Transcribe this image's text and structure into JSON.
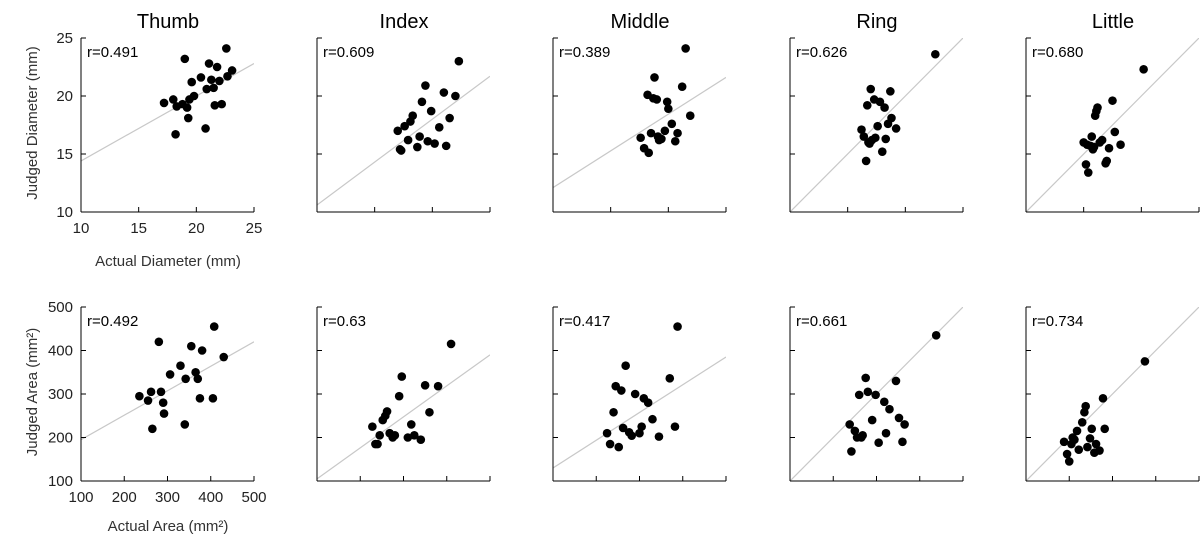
{
  "columns": [
    "Thumb",
    "Index",
    "Middle",
    "Ring",
    "Little"
  ],
  "rows": [
    {
      "xlabel": "Actual Diameter (mm)",
      "ylabel": "Judged Diameter (mm)",
      "xlim": [
        10,
        25
      ],
      "ylim": [
        10,
        25
      ],
      "xticks": [
        10,
        15,
        20,
        25
      ],
      "yticks": [
        10,
        15,
        20,
        25
      ]
    },
    {
      "xlabel": "Actual Area (mm²)",
      "ylabel": "Judged Area (mm²)",
      "xlim": [
        100,
        500
      ],
      "ylim": [
        100,
        500
      ],
      "xticks": [
        100,
        200,
        300,
        400,
        500
      ],
      "yticks": [
        100,
        200,
        300,
        400,
        500
      ]
    }
  ],
  "chart_data": [
    {
      "type": "scatter",
      "row": 0,
      "col": 0,
      "title": "Thumb",
      "r_label": "r=0.491",
      "xlabel": "Actual Diameter (mm)",
      "ylabel": "Judged Diameter (mm)",
      "xlim": [
        10,
        25
      ],
      "ylim": [
        10,
        25
      ],
      "fit_line": {
        "x": [
          10,
          25
        ],
        "y": [
          14.4,
          22.8
        ]
      },
      "x": [
        17.2,
        18.0,
        18.3,
        18.8,
        19.0,
        19.2,
        19.3,
        19.4,
        19.6,
        19.8,
        20.4,
        20.8,
        20.9,
        21.1,
        21.3,
        21.5,
        21.6,
        21.8,
        22.0,
        22.2,
        22.6,
        22.7,
        23.1,
        18.2
      ],
      "y": [
        19.4,
        19.7,
        19.1,
        19.3,
        23.2,
        19.0,
        18.1,
        19.7,
        21.2,
        20.0,
        21.6,
        17.2,
        20.6,
        22.8,
        21.4,
        20.7,
        19.2,
        22.5,
        21.3,
        19.3,
        24.1,
        21.7,
        22.2,
        16.7
      ]
    },
    {
      "type": "scatter",
      "row": 0,
      "col": 1,
      "title": "Index",
      "r_label": "r=0.609",
      "xlabel": "",
      "ylabel": "",
      "xlim": [
        10,
        25
      ],
      "ylim": [
        10,
        25
      ],
      "fit_line": {
        "x": [
          10,
          25
        ],
        "y": [
          10.6,
          21.7
        ]
      },
      "x": [
        17.0,
        17.2,
        17.3,
        17.6,
        17.9,
        18.1,
        18.3,
        18.7,
        18.9,
        19.1,
        19.4,
        19.6,
        19.9,
        20.2,
        20.6,
        21.0,
        21.2,
        21.5,
        22.0,
        22.3
      ],
      "y": [
        17.0,
        15.4,
        15.3,
        17.4,
        16.2,
        17.8,
        18.3,
        15.6,
        16.5,
        19.5,
        20.9,
        16.1,
        18.7,
        15.9,
        17.3,
        20.3,
        15.7,
        18.1,
        20.0,
        23.0
      ]
    },
    {
      "type": "scatter",
      "row": 0,
      "col": 2,
      "title": "Middle",
      "r_label": "r=0.389",
      "xlabel": "",
      "ylabel": "",
      "xlim": [
        10,
        25
      ],
      "ylim": [
        10,
        25
      ],
      "fit_line": {
        "x": [
          10,
          25
        ],
        "y": [
          12.1,
          21.6
        ]
      },
      "x": [
        17.6,
        17.9,
        18.2,
        18.3,
        18.5,
        18.7,
        18.8,
        19.0,
        19.1,
        19.2,
        19.4,
        19.7,
        19.9,
        20.0,
        20.3,
        20.6,
        20.8,
        21.2,
        21.5,
        21.9
      ],
      "y": [
        16.4,
        15.5,
        20.1,
        15.1,
        16.8,
        19.8,
        21.6,
        19.7,
        16.5,
        16.2,
        16.3,
        17.0,
        19.5,
        18.9,
        17.6,
        16.1,
        16.8,
        20.8,
        24.1,
        18.3
      ]
    },
    {
      "type": "scatter",
      "row": 0,
      "col": 3,
      "title": "Ring",
      "r_label": "r=0.626",
      "xlabel": "",
      "ylabel": "",
      "xlim": [
        10,
        25
      ],
      "ylim": [
        10,
        25
      ],
      "fit_line": {
        "x": [
          10,
          25
        ],
        "y": [
          10.0,
          25.0
        ]
      },
      "x": [
        16.2,
        16.4,
        16.6,
        16.7,
        16.8,
        16.9,
        17.0,
        17.1,
        17.3,
        17.4,
        17.6,
        17.8,
        18.0,
        18.2,
        18.3,
        18.5,
        18.7,
        18.8,
        19.2,
        22.6
      ],
      "y": [
        17.1,
        16.5,
        14.4,
        19.2,
        16.0,
        15.9,
        20.6,
        16.2,
        19.7,
        16.4,
        17.4,
        19.5,
        15.2,
        19.0,
        16.3,
        17.6,
        20.4,
        18.1,
        17.2,
        23.6
      ]
    },
    {
      "type": "scatter",
      "row": 0,
      "col": 4,
      "title": "Little",
      "r_label": "r=0.680",
      "xlabel": "",
      "ylabel": "",
      "xlim": [
        10,
        25
      ],
      "ylim": [
        10,
        25
      ],
      "fit_line": {
        "x": [
          10,
          25
        ],
        "y": [
          10.0,
          25.0
        ]
      },
      "x": [
        15.0,
        15.2,
        15.3,
        15.4,
        15.6,
        15.7,
        15.8,
        15.9,
        16.0,
        16.1,
        16.2,
        16.4,
        16.6,
        16.9,
        17.0,
        17.2,
        17.5,
        17.7,
        18.2,
        20.2
      ],
      "y": [
        16.0,
        14.1,
        15.8,
        13.4,
        15.7,
        16.5,
        15.4,
        15.6,
        18.3,
        18.7,
        19.0,
        16.0,
        16.2,
        14.2,
        14.4,
        15.5,
        19.6,
        16.9,
        15.8,
        22.3
      ]
    },
    {
      "type": "scatter",
      "row": 1,
      "col": 0,
      "title": "",
      "r_label": "r=0.492",
      "xlabel": "Actual Area (mm²)",
      "ylabel": "Judged Area (mm²)",
      "xlim": [
        100,
        500
      ],
      "ylim": [
        100,
        500
      ],
      "fit_line": {
        "x": [
          100,
          500
        ],
        "y": [
          195,
          420
        ]
      },
      "x": [
        235,
        255,
        262,
        280,
        285,
        290,
        292,
        306,
        330,
        340,
        342,
        355,
        365,
        370,
        375,
        380,
        405,
        408,
        430,
        265
      ],
      "y": [
        295,
        285,
        305,
        420,
        305,
        280,
        255,
        345,
        365,
        230,
        335,
        410,
        350,
        335,
        290,
        400,
        290,
        455,
        385,
        220
      ]
    },
    {
      "type": "scatter",
      "row": 1,
      "col": 1,
      "title": "",
      "r_label": "r=0.63",
      "xlabel": "",
      "ylabel": "",
      "xlim": [
        100,
        500
      ],
      "ylim": [
        100,
        500
      ],
      "fit_line": {
        "x": [
          100,
          500
        ],
        "y": [
          105,
          390
        ]
      },
      "x": [
        228,
        235,
        240,
        245,
        252,
        258,
        262,
        268,
        275,
        280,
        290,
        296,
        310,
        318,
        325,
        340,
        350,
        360,
        380,
        410
      ],
      "y": [
        225,
        185,
        185,
        205,
        240,
        250,
        260,
        210,
        200,
        205,
        295,
        340,
        200,
        230,
        205,
        195,
        320,
        258,
        318,
        415
      ]
    },
    {
      "type": "scatter",
      "row": 1,
      "col": 2,
      "title": "",
      "r_label": "r=0.417",
      "xlabel": "",
      "ylabel": "",
      "xlim": [
        100,
        500
      ],
      "ylim": [
        100,
        500
      ],
      "fit_line": {
        "x": [
          100,
          500
        ],
        "y": [
          130,
          385
        ]
      },
      "x": [
        225,
        232,
        240,
        245,
        252,
        258,
        262,
        268,
        276,
        282,
        290,
        300,
        305,
        310,
        320,
        330,
        345,
        370,
        382,
        388
      ],
      "y": [
        210,
        185,
        258,
        318,
        178,
        308,
        222,
        365,
        212,
        204,
        300,
        210,
        225,
        290,
        280,
        242,
        202,
        336,
        225,
        455
      ]
    },
    {
      "type": "scatter",
      "row": 1,
      "col": 3,
      "title": "",
      "r_label": "r=0.661",
      "xlabel": "",
      "ylabel": "",
      "xlim": [
        100,
        500
      ],
      "ylim": [
        100,
        500
      ],
      "fit_line": {
        "x": [
          100,
          500
        ],
        "y": [
          100,
          500
        ]
      },
      "x": [
        238,
        242,
        250,
        255,
        260,
        265,
        268,
        275,
        280,
        290,
        298,
        305,
        318,
        322,
        330,
        345,
        352,
        360,
        365,
        438
      ],
      "y": [
        230,
        168,
        215,
        200,
        298,
        200,
        205,
        337,
        305,
        240,
        298,
        188,
        282,
        210,
        265,
        330,
        245,
        190,
        230,
        435
      ]
    },
    {
      "type": "scatter",
      "row": 1,
      "col": 4,
      "title": "",
      "r_label": "r=0.734",
      "xlabel": "",
      "ylabel": "",
      "xlim": [
        100,
        500
      ],
      "ylim": [
        100,
        500
      ],
      "fit_line": {
        "x": [
          100,
          500
        ],
        "y": [
          100,
          500
        ]
      },
      "x": [
        188,
        195,
        200,
        205,
        208,
        212,
        218,
        222,
        230,
        235,
        238,
        242,
        248,
        252,
        258,
        262,
        270,
        278,
        282,
        375
      ],
      "y": [
        190,
        162,
        145,
        185,
        200,
        195,
        215,
        172,
        235,
        258,
        272,
        178,
        198,
        220,
        165,
        185,
        170,
        290,
        220,
        375
      ]
    }
  ]
}
